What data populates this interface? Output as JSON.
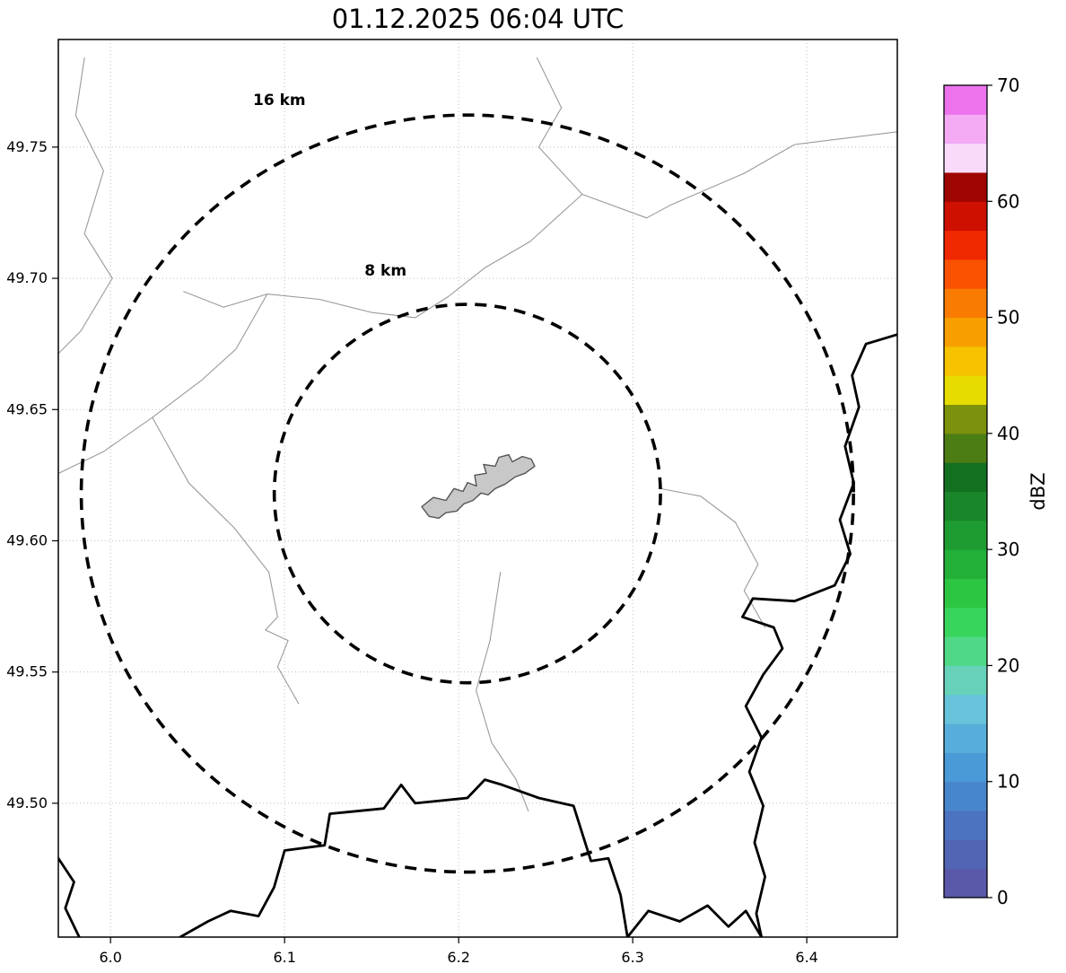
{
  "title": "01.12.2025 06:04 UTC",
  "chart_data": {
    "type": "heatmap",
    "description": "Weather radar reflectivity (dBZ) map display centered on a radar site near 6.205E 49.618N with 8 km and 16 km range rings; no precipitation echoes visible",
    "title": "01.12.2025 06:04 UTC",
    "grid": true,
    "x_axis": {
      "lim": [
        5.97,
        6.452
      ],
      "ticks": [
        6.0,
        6.1,
        6.2,
        6.3,
        6.4
      ],
      "tick_labels": [
        "6.0",
        "6.1",
        "6.2",
        "6.3",
        "6.4"
      ]
    },
    "y_axis": {
      "lim": [
        49.449,
        49.791
      ],
      "ticks": [
        49.5,
        49.55,
        49.6,
        49.65,
        49.7,
        49.75
      ],
      "tick_labels": [
        "49.50",
        "49.55",
        "49.60",
        "49.65",
        "49.70",
        "49.75"
      ]
    },
    "radar_center": {
      "lon": 6.205,
      "lat": 49.618
    },
    "range_rings": [
      {
        "radius_km": 8,
        "label": "8 km",
        "label_pos": {
          "lon": 6.158,
          "lat": 49.701
        }
      },
      {
        "radius_km": 16,
        "label": "16 km",
        "label_pos": {
          "lon": 6.097,
          "lat": 49.766
        }
      }
    ],
    "echoes": "none",
    "colorbar": {
      "label": "dBZ",
      "min": 0,
      "max": 70,
      "band_dbz": 2.5,
      "ticks": [
        0,
        10,
        20,
        30,
        40,
        50,
        60,
        70
      ],
      "tick_labels": [
        "0",
        "10",
        "20",
        "30",
        "40",
        "50",
        "60",
        "70"
      ],
      "colors_bottom_to_top": [
        "#5a58a8",
        "#5264b4",
        "#4c73c0",
        "#4786cc",
        "#499ad6",
        "#58aedb",
        "#67c3d9",
        "#67d2b9",
        "#4fd986",
        "#38d55c",
        "#2cc643",
        "#23b039",
        "#1e9c31",
        "#198729",
        "#147021",
        "#4c7d14",
        "#7c910c",
        "#e6dc00",
        "#f7c300",
        "#f89f00",
        "#f97b00",
        "#fa5200",
        "#f02800",
        "#cd1000",
        "#9e0400",
        "#f9dbf9",
        "#f4abf4",
        "#ec73ec"
      ]
    },
    "map_features": {
      "site_polygon": [
        [
          6.183,
          49.6093
        ],
        [
          6.1788,
          49.613
        ],
        [
          6.1855,
          49.6165
        ],
        [
          6.1927,
          49.6154
        ],
        [
          6.1973,
          49.6199
        ],
        [
          6.2025,
          49.6188
        ],
        [
          6.2051,
          49.6222
        ],
        [
          6.2102,
          49.6209
        ],
        [
          6.2092,
          49.625
        ],
        [
          6.2159,
          49.6257
        ],
        [
          6.2143,
          49.6291
        ],
        [
          6.221,
          49.6284
        ],
        [
          6.2231,
          49.6318
        ],
        [
          6.2288,
          49.6328
        ],
        [
          6.2308,
          49.6301
        ],
        [
          6.2365,
          49.6321
        ],
        [
          6.2417,
          49.6311
        ],
        [
          6.2437,
          49.6284
        ],
        [
          6.2381,
          49.6257
        ],
        [
          6.2324,
          49.6243
        ],
        [
          6.2267,
          49.6216
        ],
        [
          6.221,
          49.6199
        ],
        [
          6.2169,
          49.6175
        ],
        [
          6.2128,
          49.6182
        ],
        [
          6.2082,
          49.6154
        ],
        [
          6.203,
          49.6141
        ],
        [
          6.1989,
          49.6113
        ],
        [
          6.1927,
          49.6107
        ],
        [
          6.1886,
          49.6086
        ]
      ],
      "admin_borders": [
        [
          [
            5.985,
            49.784
          ],
          [
            5.98,
            49.762
          ],
          [
            5.996,
            49.741
          ],
          [
            5.985,
            49.717
          ],
          [
            6.001,
            49.7
          ],
          [
            5.983,
            49.68
          ],
          [
            5.968,
            49.67
          ]
        ],
        [
          [
            6.245,
            49.784
          ],
          [
            6.259,
            49.765
          ],
          [
            6.246,
            49.75
          ],
          [
            6.271,
            49.732
          ],
          [
            6.308,
            49.723
          ],
          [
            6.322,
            49.728
          ],
          [
            6.364,
            49.74
          ],
          [
            6.393,
            49.751
          ],
          [
            6.454,
            49.756
          ]
        ],
        [
          [
            6.271,
            49.732
          ],
          [
            6.241,
            49.714
          ],
          [
            6.215,
            49.704
          ],
          [
            6.194,
            49.693
          ],
          [
            6.175,
            49.685
          ],
          [
            6.15,
            49.687
          ],
          [
            6.12,
            49.692
          ],
          [
            6.09,
            49.694
          ],
          [
            6.065,
            49.689
          ],
          [
            6.042,
            49.695
          ]
        ],
        [
          [
            6.09,
            49.694
          ],
          [
            6.072,
            49.673
          ],
          [
            6.052,
            49.661
          ],
          [
            6.024,
            49.647
          ],
          [
            5.996,
            49.634
          ],
          [
            5.968,
            49.625
          ]
        ],
        [
          [
            6.024,
            49.647
          ],
          [
            6.045,
            49.622
          ],
          [
            6.071,
            49.605
          ],
          [
            6.091,
            49.588
          ],
          [
            6.096,
            49.571
          ],
          [
            6.089,
            49.566
          ],
          [
            6.102,
            49.562
          ],
          [
            6.096,
            49.552
          ],
          [
            6.108,
            49.538
          ]
        ],
        [
          [
            6.224,
            49.588
          ],
          [
            6.218,
            49.562
          ],
          [
            6.21,
            49.543
          ],
          [
            6.219,
            49.523
          ],
          [
            6.233,
            49.509
          ],
          [
            6.24,
            49.497
          ]
        ],
        [
          [
            6.315,
            49.62
          ],
          [
            6.339,
            49.617
          ],
          [
            6.359,
            49.607
          ],
          [
            6.372,
            49.591
          ],
          [
            6.364,
            49.581
          ],
          [
            6.376,
            49.567
          ]
        ]
      ],
      "country_borders": [
        [
          [
            6.454,
            49.679
          ],
          [
            6.434,
            49.675
          ],
          [
            6.426,
            49.663
          ],
          [
            6.43,
            49.651
          ],
          [
            6.422,
            49.636
          ],
          [
            6.427,
            49.622
          ],
          [
            6.419,
            49.608
          ],
          [
            6.425,
            49.595
          ],
          [
            6.416,
            49.583
          ],
          [
            6.393,
            49.577
          ],
          [
            6.369,
            49.578
          ],
          [
            6.363,
            49.571
          ],
          [
            6.381,
            49.567
          ],
          [
            6.386,
            49.559
          ],
          [
            6.375,
            49.549
          ],
          [
            6.365,
            49.537
          ],
          [
            6.374,
            49.525
          ],
          [
            6.367,
            49.512
          ],
          [
            6.375,
            49.499
          ],
          [
            6.37,
            49.485
          ],
          [
            6.376,
            49.472
          ],
          [
            6.371,
            49.458
          ],
          [
            6.374,
            49.449
          ]
        ],
        [
          [
            6.04,
            49.449
          ],
          [
            6.056,
            49.455
          ],
          [
            6.069,
            49.459
          ],
          [
            6.085,
            49.457
          ],
          [
            6.094,
            49.468
          ],
          [
            6.1,
            49.482
          ],
          [
            6.123,
            49.484
          ],
          [
            6.126,
            49.496
          ],
          [
            6.157,
            49.498
          ],
          [
            6.167,
            49.507
          ],
          [
            6.175,
            49.5
          ],
          [
            6.205,
            49.502
          ],
          [
            6.215,
            49.509
          ],
          [
            6.225,
            49.507
          ],
          [
            6.246,
            49.502
          ],
          [
            6.266,
            49.499
          ],
          [
            6.276,
            49.478
          ],
          [
            6.286,
            49.479
          ],
          [
            6.293,
            49.465
          ],
          [
            6.297,
            49.449
          ]
        ],
        [
          [
            5.968,
            49.481
          ],
          [
            5.979,
            49.47
          ],
          [
            5.974,
            49.46
          ],
          [
            5.982,
            49.449
          ]
        ],
        [
          [
            6.297,
            49.449
          ],
          [
            6.309,
            49.459
          ],
          [
            6.327,
            49.455
          ],
          [
            6.343,
            49.461
          ],
          [
            6.355,
            49.453
          ],
          [
            6.365,
            49.459
          ],
          [
            6.374,
            49.449
          ]
        ]
      ]
    },
    "colors": {
      "range_ring": "#000000",
      "admin_border": "#9a9a9a",
      "country_border": "#000000",
      "site_fill": "#c8c8c8",
      "gridline": "#bdbdbd"
    }
  }
}
